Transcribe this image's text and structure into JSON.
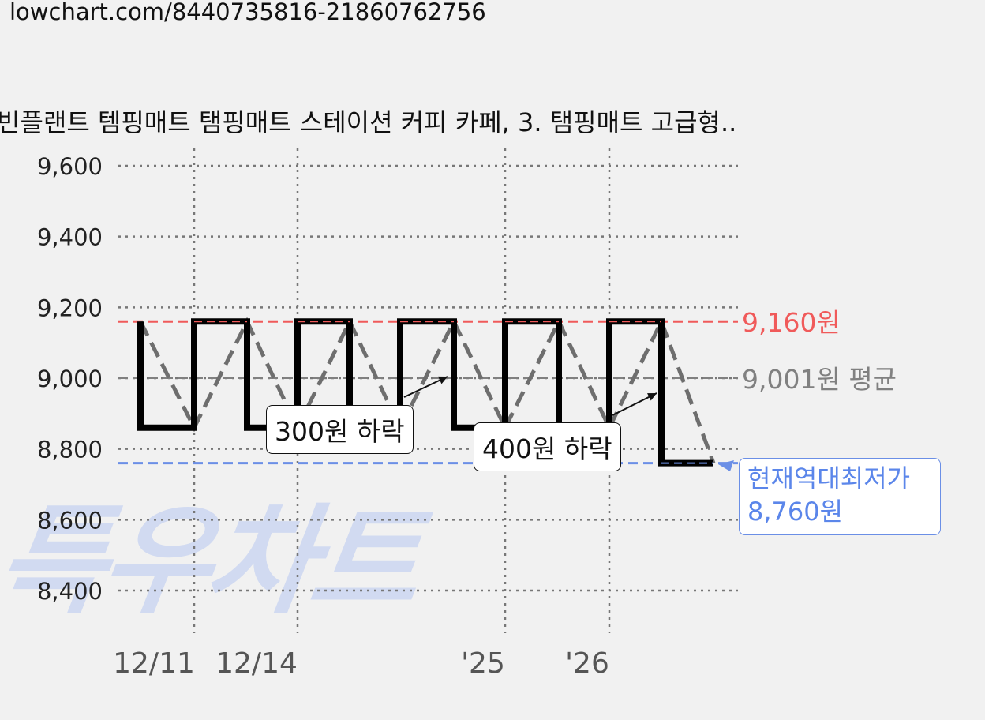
{
  "header": {
    "url": "lowchart.com/8440735816-21860762756",
    "title": "빈플랜트 템핑매트 탬핑매트 스테이션 커피 카페, 3. 탬핑매트 고급형.."
  },
  "watermark": "특우차트",
  "colors": {
    "max": "#f05a5a",
    "avg": "#808080",
    "min": "#6b8fe6",
    "price_line": "#000000",
    "trend_line": "#6e6e6e"
  },
  "chart_data": {
    "type": "line",
    "title": "빈플랜트 템핑매트 탬핑매트 스테이션 커피 카페, 3. 탬핑매트 고급형..",
    "ylim": [
      8300,
      9650
    ],
    "y_ticks": [
      "9,600",
      "9,400",
      "9,200",
      "9,000",
      "8,800",
      "8,600",
      "8,400"
    ],
    "y_tick_values": [
      9600,
      9400,
      9200,
      9000,
      8800,
      8600,
      8400
    ],
    "x_ticks": [
      "12/11",
      "12/14",
      "'25",
      "'26"
    ],
    "grid": true,
    "series": [
      {
        "step_points": [
          [
            0,
            9160
          ],
          [
            0,
            8860
          ],
          [
            1,
            8860
          ],
          [
            1,
            9160
          ],
          [
            2,
            9160
          ],
          [
            2,
            8860
          ],
          [
            3,
            8860
          ],
          [
            3,
            9160
          ],
          [
            4,
            9160
          ],
          [
            4,
            8860
          ],
          [
            5,
            8860
          ],
          [
            5,
            9160
          ],
          [
            6,
            9160
          ],
          [
            6,
            8860
          ],
          [
            7,
            8860
          ],
          [
            7,
            9160
          ],
          [
            8,
            9160
          ],
          [
            8,
            8860
          ],
          [
            9,
            8860
          ],
          [
            9,
            9160
          ],
          [
            10,
            9160
          ],
          [
            10,
            8760
          ],
          [
            11,
            8760
          ]
        ]
      },
      {
        "dashed_points": [
          [
            0,
            9160
          ],
          [
            1,
            8860
          ],
          [
            2,
            9160
          ],
          [
            3,
            8860
          ],
          [
            4,
            9160
          ],
          [
            5,
            8860
          ],
          [
            6,
            9160
          ],
          [
            7,
            8860
          ],
          [
            8,
            9160
          ],
          [
            9,
            8860
          ],
          [
            10,
            9160
          ],
          [
            11,
            8760
          ]
        ]
      }
    ],
    "reference_lines": [
      {
        "value": 9160,
        "label": "9,160원"
      },
      {
        "value": 9001,
        "label": "9,001원 평균"
      },
      {
        "value": 8760,
        "label": "8,760원"
      }
    ],
    "annotations": [
      {
        "text": "300원 하락"
      },
      {
        "text": "400원 하락"
      }
    ],
    "current_low": {
      "line1": "현재역대최저가",
      "line2": "8,760원"
    }
  }
}
